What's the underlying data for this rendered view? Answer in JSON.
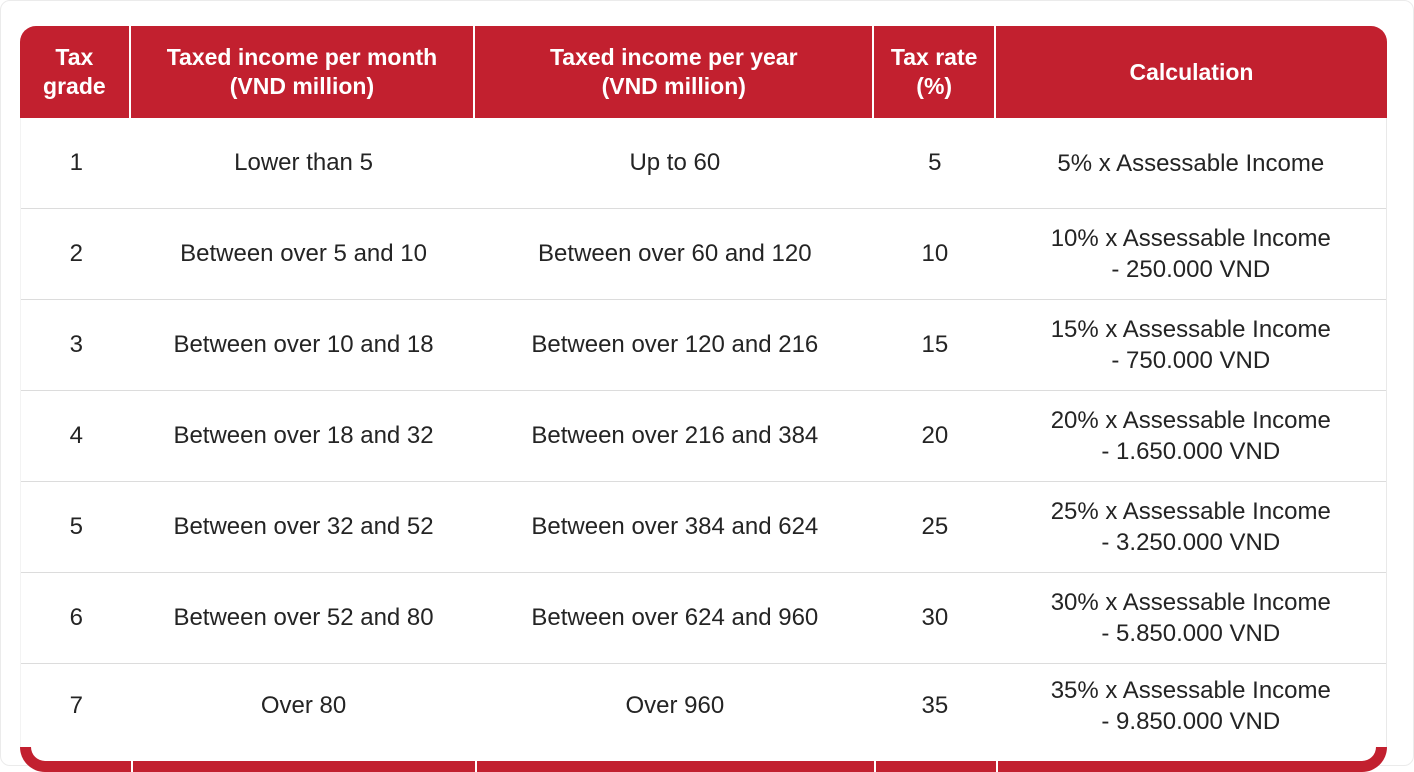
{
  "page": {
    "background": "#ffffff",
    "accent_red": "#c2202f",
    "separator_gray": "#dcdcdc",
    "text_color": "#242424"
  },
  "table": {
    "columns": [
      {
        "line1": "Tax",
        "line2": "grade"
      },
      {
        "line1": "Taxed income per month",
        "line2": "(VND million)"
      },
      {
        "line1": "Taxed income per year",
        "line2": "(VND million)"
      },
      {
        "line1": "Tax rate",
        "line2": "(%)"
      },
      {
        "line1": "Calculation",
        "line2": ""
      }
    ],
    "rows": [
      {
        "grade": "1",
        "monthly": "Lower than 5",
        "yearly": "Up to 60",
        "rate": "5",
        "calc1": "5% x Assessable Income",
        "calc2": ""
      },
      {
        "grade": "2",
        "monthly": "Between over 5 and 10",
        "yearly": "Between over 60 and 120",
        "rate": "10",
        "calc1": "10% x Assessable Income",
        "calc2": "- 250.000 VND"
      },
      {
        "grade": "3",
        "monthly": "Between over 10 and 18",
        "yearly": "Between over 120 and 216",
        "rate": "15",
        "calc1": "15% x Assessable Income",
        "calc2": "- 750.000 VND"
      },
      {
        "grade": "4",
        "monthly": "Between over 18 and 32",
        "yearly": "Between over 216 and 384",
        "rate": "20",
        "calc1": "20% x Assessable Income",
        "calc2": "- 1.650.000 VND"
      },
      {
        "grade": "5",
        "monthly": "Between over 32 and 52",
        "yearly": "Between over 384 and 624",
        "rate": "25",
        "calc1": "25% x Assessable Income",
        "calc2": "- 3.250.000 VND"
      },
      {
        "grade": "6",
        "monthly": "Between over 52 and 80",
        "yearly": "Between over 624 and 960",
        "rate": "30",
        "calc1": "30% x Assessable Income",
        "calc2": "- 5.850.000 VND"
      },
      {
        "grade": "7",
        "monthly": "Over 80",
        "yearly": "Over 960",
        "rate": "35",
        "calc1": "35% x Assessable Income",
        "calc2": "- 9.850.000 VND"
      }
    ]
  }
}
